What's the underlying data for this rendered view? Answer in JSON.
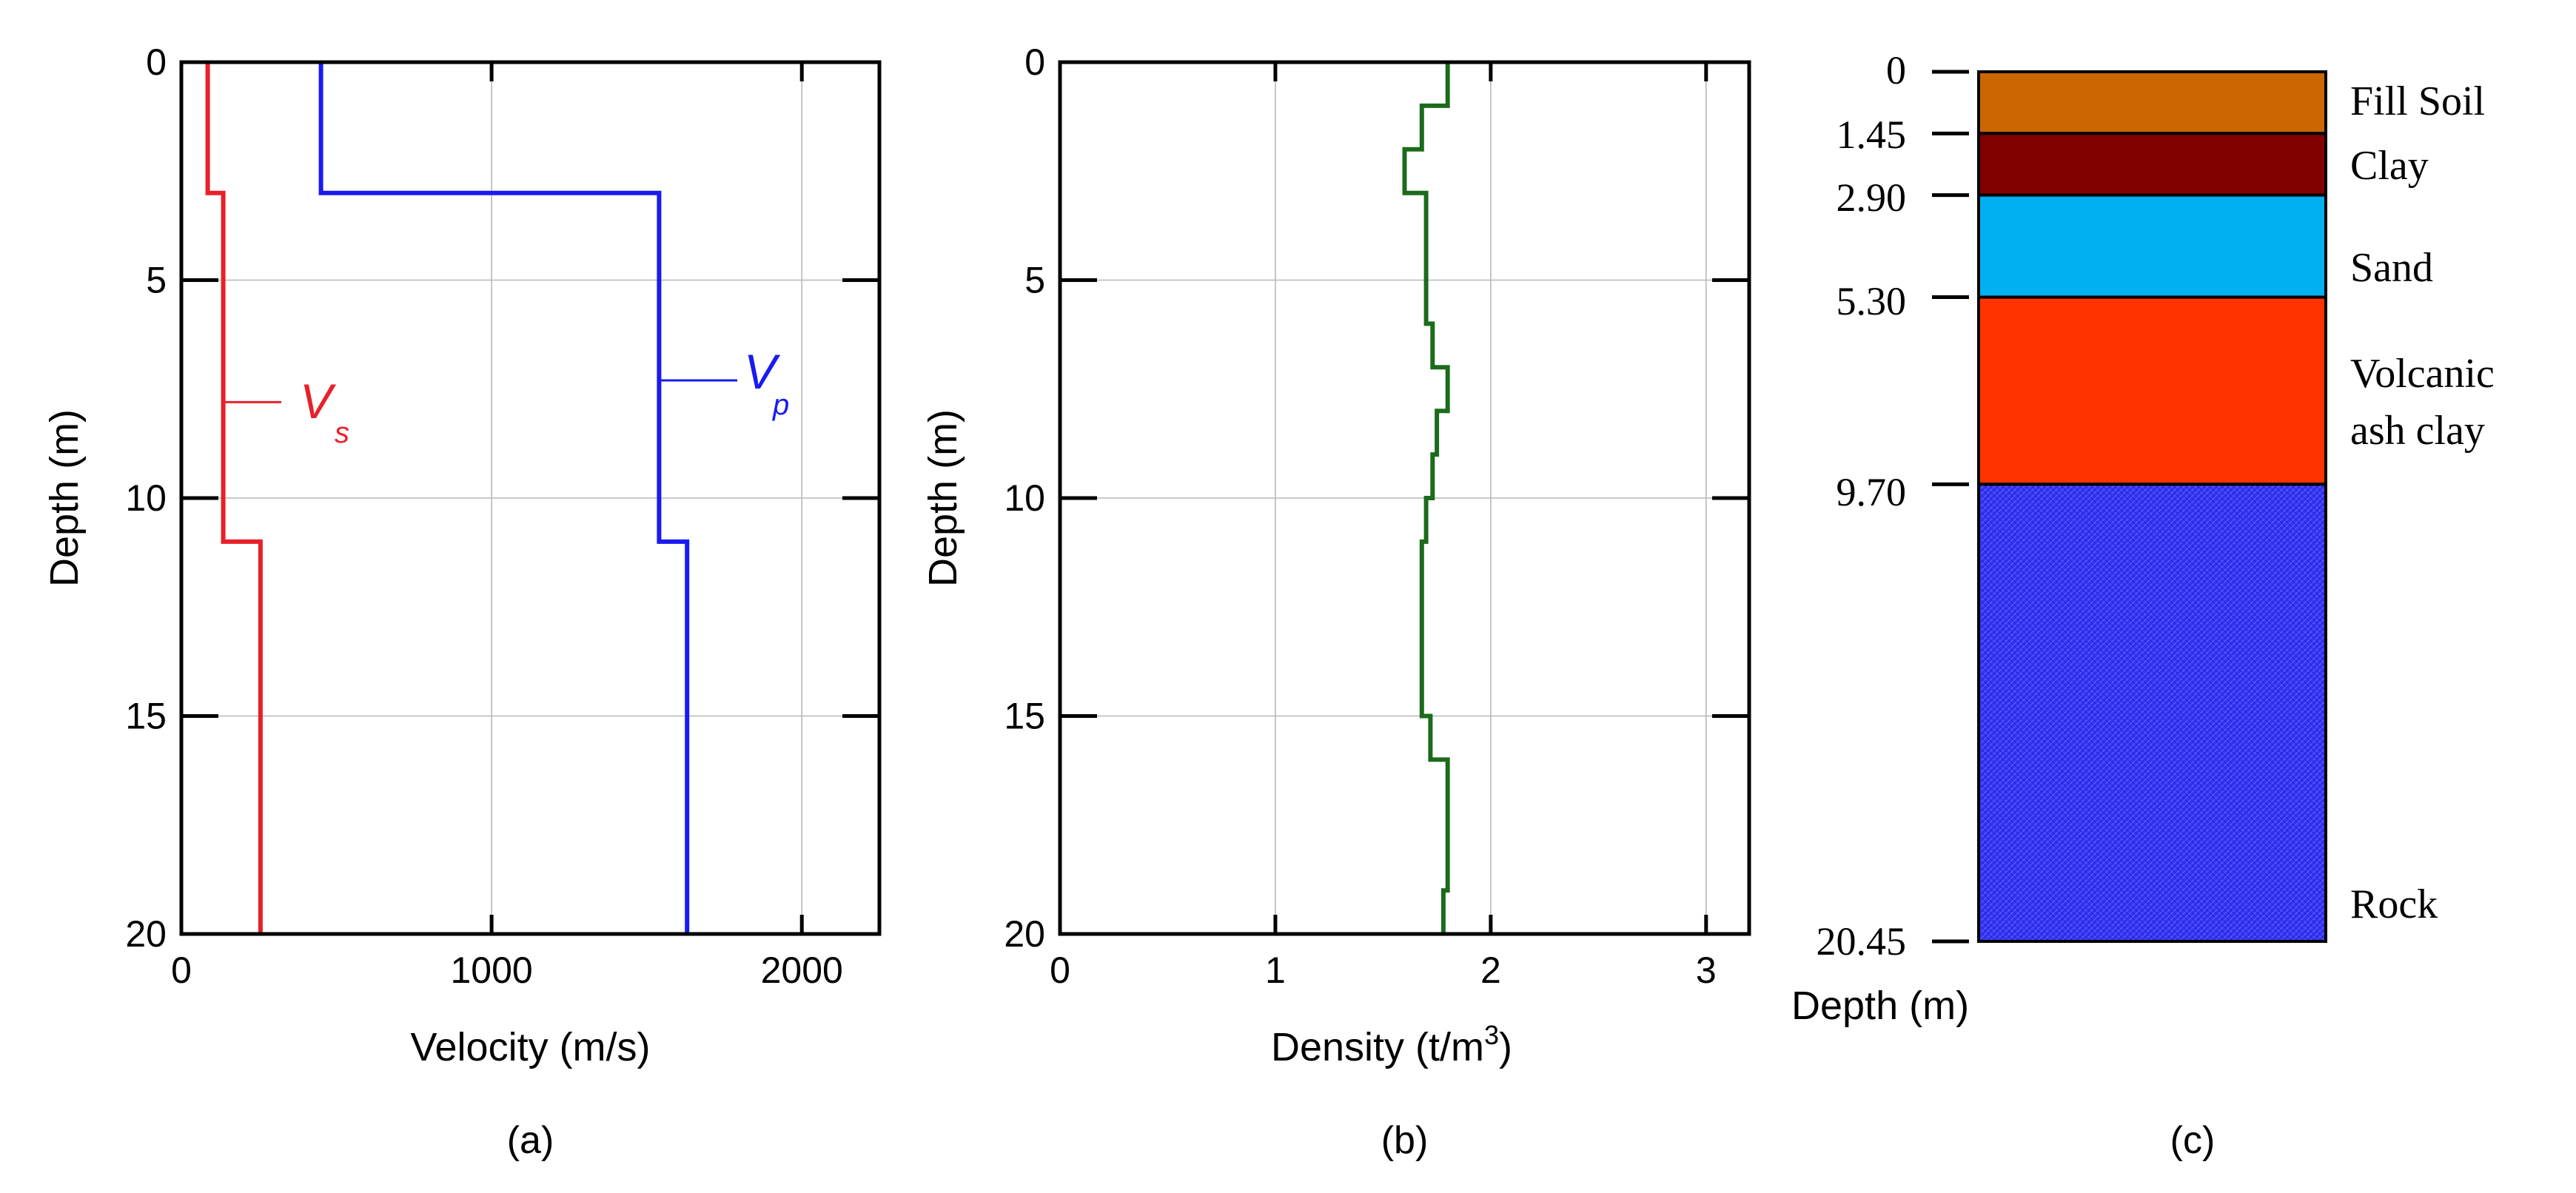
{
  "chart_data": [
    {
      "type": "line",
      "panel_label": "(a)",
      "xlabel": "Velocity (m/s)",
      "ylabel": "Depth (m)",
      "xlim": [
        0,
        2250
      ],
      "ylim": [
        20,
        0
      ],
      "x_ticks": [
        "0",
        "1000",
        "2000"
      ],
      "y_ticks": [
        "0",
        "5",
        "10",
        "15",
        "20"
      ],
      "grid": true,
      "series": [
        {
          "name": "V_s",
          "label_main": "V",
          "label_sub": "s",
          "color": "#e8202a",
          "points": [
            [
              85,
              0
            ],
            [
              85,
              3
            ],
            [
              135,
              3
            ],
            [
              135,
              11
            ],
            [
              255,
              11
            ],
            [
              255,
              20
            ]
          ]
        },
        {
          "name": "V_p",
          "label_main": "V",
          "label_sub": "p",
          "color": "#1a1af0",
          "points": [
            [
              450,
              0
            ],
            [
              450,
              3
            ],
            [
              1540,
              3
            ],
            [
              1540,
              11
            ],
            [
              1630,
              11
            ],
            [
              1630,
              20
            ]
          ]
        }
      ]
    },
    {
      "type": "line",
      "panel_label": "(b)",
      "xlabel_main": "Density (t/m",
      "xlabel_sup": "3",
      "xlabel_end": ")",
      "ylabel": "Depth (m)",
      "xlim": [
        0,
        3.2
      ],
      "ylim": [
        20,
        0
      ],
      "x_ticks": [
        "0",
        "1",
        "2",
        "3"
      ],
      "y_ticks": [
        "0",
        "5",
        "10",
        "15",
        "20"
      ],
      "grid": true,
      "series": [
        {
          "name": "Density",
          "color": "#1c6b1c",
          "points": [
            [
              1.8,
              0
            ],
            [
              1.8,
              1
            ],
            [
              1.68,
              1
            ],
            [
              1.68,
              2
            ],
            [
              1.6,
              2
            ],
            [
              1.6,
              3
            ],
            [
              1.7,
              3
            ],
            [
              1.7,
              6
            ],
            [
              1.73,
              6
            ],
            [
              1.73,
              7
            ],
            [
              1.8,
              7
            ],
            [
              1.8,
              8
            ],
            [
              1.75,
              8
            ],
            [
              1.75,
              9
            ],
            [
              1.73,
              9
            ],
            [
              1.73,
              10
            ],
            [
              1.7,
              10
            ],
            [
              1.7,
              11
            ],
            [
              1.68,
              11
            ],
            [
              1.68,
              15
            ],
            [
              1.72,
              15
            ],
            [
              1.72,
              16
            ],
            [
              1.8,
              16
            ],
            [
              1.8,
              19
            ],
            [
              1.78,
              19
            ],
            [
              1.78,
              20
            ]
          ]
        }
      ]
    },
    {
      "type": "stratigraphic-column",
      "panel_label": "(c)",
      "depth_axis_label": "Depth (m)",
      "total_depth": 20.45,
      "boundaries": [
        "0",
        "1.45",
        "2.90",
        "5.30",
        "9.70",
        "20.45"
      ],
      "layers": [
        {
          "name": "Fill Soil",
          "label_lines": [
            "Fill Soil"
          ],
          "top": 0,
          "bottom": 1.45,
          "color": "#cc6600"
        },
        {
          "name": "Clay",
          "label_lines": [
            "Clay"
          ],
          "top": 1.45,
          "bottom": 2.9,
          "color": "#800000"
        },
        {
          "name": "Sand",
          "label_lines": [
            "Sand"
          ],
          "top": 2.9,
          "bottom": 5.3,
          "color": "#00b0f0"
        },
        {
          "name": "Volcanic ash clay",
          "label_lines": [
            "Volcanic",
            "ash clay"
          ],
          "top": 5.3,
          "bottom": 9.7,
          "color": "#ff3300"
        },
        {
          "name": "Rock",
          "label_lines": [
            "Rock"
          ],
          "top": 9.7,
          "bottom": 20.45,
          "color": "#3333ff"
        }
      ]
    }
  ]
}
